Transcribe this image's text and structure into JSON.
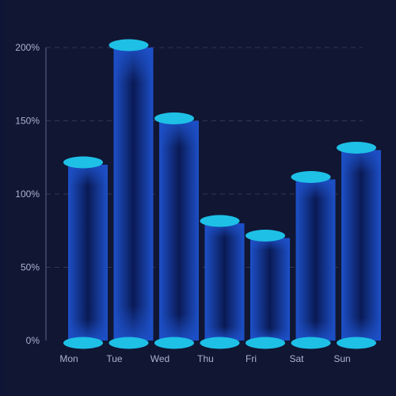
{
  "chart_data": {
    "type": "bar",
    "title": "",
    "xlabel": "",
    "ylabel": "",
    "categories": [
      "Mon",
      "Tue",
      "Wed",
      "Thu",
      "Fri",
      "Sat",
      "Sun"
    ],
    "values": [
      120,
      200,
      150,
      80,
      70,
      110,
      130
    ],
    "ylim": [
      0,
      200
    ],
    "y_ticks": [
      0,
      50,
      100,
      150,
      200
    ],
    "y_tick_labels": [
      "0%",
      "50%",
      "100%",
      "150%",
      "200%"
    ],
    "grid": true,
    "legend": "none",
    "colors": {
      "background": "#111633",
      "bar_edge": "#1c4fc4",
      "bar_center": "#0b1a55",
      "cap": "#1ec0e6",
      "grid": "#2e3657",
      "axis": "#5b6488",
      "text": "#a9b3cf"
    }
  }
}
